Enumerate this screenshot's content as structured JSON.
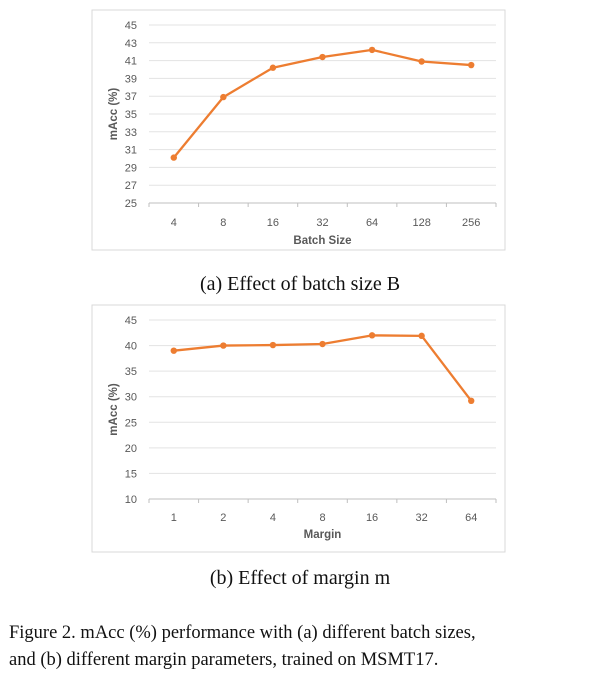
{
  "chart_data": [
    {
      "type": "line",
      "xlabel": "Batch Size",
      "ylabel": "mAcc (%)",
      "categories": [
        "4",
        "8",
        "16",
        "32",
        "64",
        "128",
        "256"
      ],
      "values": [
        30.1,
        36.9,
        40.2,
        41.4,
        42.2,
        40.9,
        40.5
      ],
      "ylim": [
        25,
        45
      ],
      "yticks": [
        25,
        27,
        29,
        31,
        33,
        35,
        37,
        39,
        41,
        43,
        45
      ],
      "grid": true,
      "color": "#ED7D31",
      "caption": "(a) Effect of batch size B"
    },
    {
      "type": "line",
      "xlabel": "Margin",
      "ylabel": "mAcc (%)",
      "categories": [
        "1",
        "2",
        "4",
        "8",
        "16",
        "32",
        "64"
      ],
      "values": [
        39.0,
        40.0,
        40.1,
        40.3,
        42.0,
        41.9,
        29.2
      ],
      "ylim": [
        10,
        45
      ],
      "yticks": [
        10,
        15,
        20,
        25,
        30,
        35,
        40,
        45
      ],
      "grid": true,
      "color": "#ED7D31",
      "caption": "(b) Effect of margin m"
    }
  ],
  "figure_caption": [
    "Figure 2.  mAcc (%) performance with (a) different batch sizes,",
    "and (b) different margin parameters, trained on MSMT17."
  ]
}
